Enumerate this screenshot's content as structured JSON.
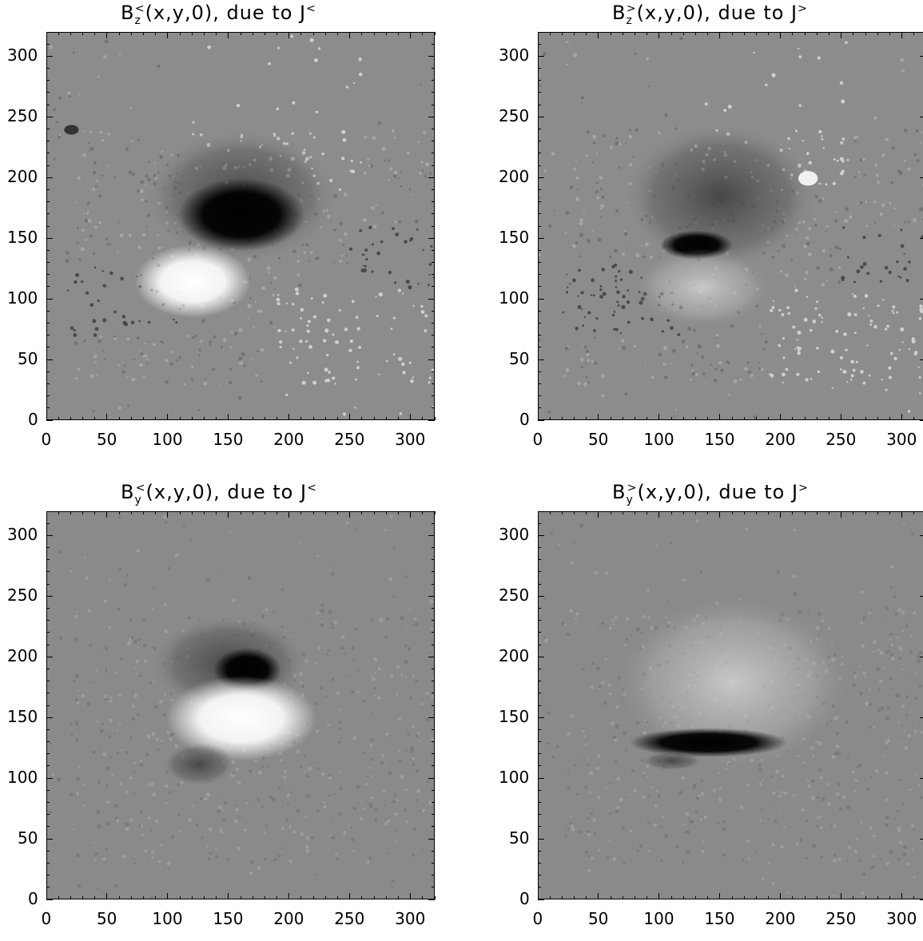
{
  "chart_data": [
    {
      "type": "heatmap",
      "title_main": "B",
      "title_sub": "z",
      "title_sup": "<",
      "title_rest": "(x,y,0), due to J",
      "title_rest_sup": "<",
      "xlim": [
        0,
        320
      ],
      "ylim": [
        0,
        320
      ],
      "xticks": [
        0,
        50,
        100,
        150,
        200,
        250,
        300
      ],
      "yticks": [
        0,
        50,
        100,
        150,
        200,
        250,
        300
      ],
      "colormap": "grayscale"
    },
    {
      "type": "heatmap",
      "title_main": "B",
      "title_sub": "z",
      "title_sup": ">",
      "title_rest": "(x,y,0), due to J",
      "title_rest_sup": ">",
      "xlim": [
        0,
        320
      ],
      "ylim": [
        0,
        320
      ],
      "xticks": [
        0,
        50,
        100,
        150,
        200,
        250,
        300
      ],
      "yticks": [
        0,
        50,
        100,
        150,
        200,
        250,
        300
      ],
      "colormap": "grayscale"
    },
    {
      "type": "heatmap",
      "title_main": "B",
      "title_sub": "y",
      "title_sup": "<",
      "title_rest": "(x,y,0), due to J",
      "title_rest_sup": "<",
      "xlim": [
        0,
        320
      ],
      "ylim": [
        0,
        320
      ],
      "xticks": [
        0,
        50,
        100,
        150,
        200,
        250,
        300
      ],
      "yticks": [
        0,
        50,
        100,
        150,
        200,
        250,
        300
      ],
      "colormap": "grayscale"
    },
    {
      "type": "heatmap",
      "title_main": "B",
      "title_sub": "y",
      "title_sup": ">",
      "title_rest": "(x,y,0), due to J",
      "title_rest_sup": ">",
      "xlim": [
        0,
        320
      ],
      "ylim": [
        0,
        320
      ],
      "xticks": [
        0,
        50,
        100,
        150,
        200,
        250,
        300
      ],
      "yticks": [
        0,
        50,
        100,
        150,
        200,
        250,
        300
      ],
      "colormap": "grayscale"
    }
  ]
}
